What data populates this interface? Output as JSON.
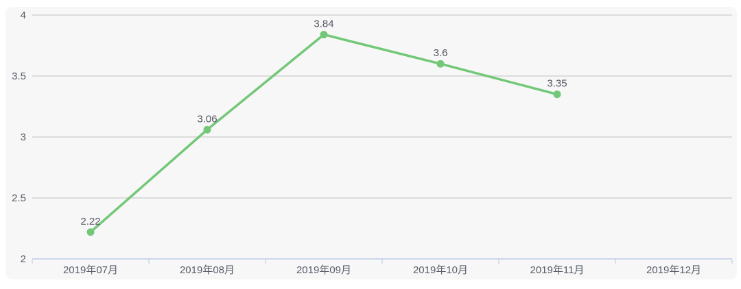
{
  "chart_data": {
    "type": "line",
    "title": "",
    "xlabel": "",
    "ylabel": "",
    "categories": [
      "2019年07月",
      "2019年08月",
      "2019年09月",
      "2019年10月",
      "2019年11月",
      "2019年12月"
    ],
    "values": [
      2.22,
      3.06,
      3.84,
      3.6,
      3.35,
      null
    ],
    "data_labels": [
      "2.22",
      "3.06",
      "3.84",
      "3.6",
      "3.35"
    ],
    "ylim": [
      2,
      4
    ],
    "yticks": [
      2,
      2.5,
      3,
      3.5,
      4
    ],
    "ytick_labels": [
      "2",
      "2.5",
      "3",
      "3.5",
      "4"
    ],
    "grid": true,
    "legend": "none",
    "colors": {
      "series": "#73c778",
      "gridline": "#dcdcdc",
      "axis_line": "#ccd6eb",
      "data_label_text": "#53565e",
      "axis_label_text": "#585d68",
      "card_background": "#f7f7f8",
      "page_background": "#ffffff"
    }
  }
}
